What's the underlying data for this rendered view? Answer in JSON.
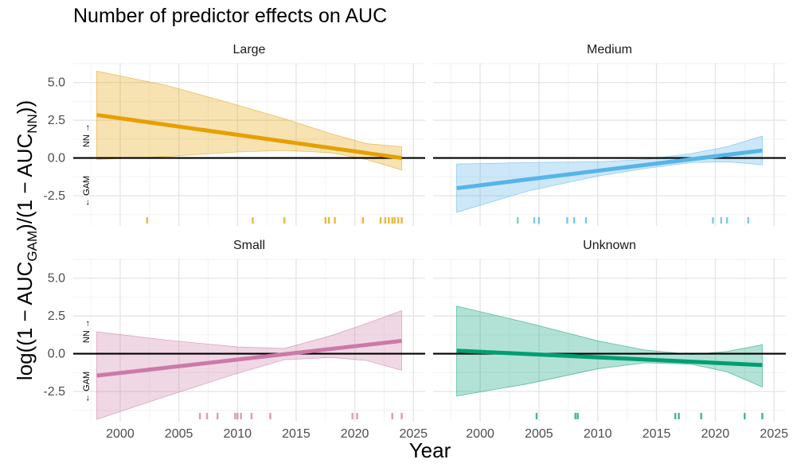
{
  "chart_data": {
    "type": "line",
    "title": "Number of predictor effects on AUC",
    "xlabel": "Year",
    "ylabel": "log((1 − AUC_GAM)/(1 − AUC_NN))",
    "ylabel_parts": {
      "pre": "log((1 − AUC",
      "sub1": "GAM",
      "mid": ")/(1 − AUC",
      "sub2": "NN",
      "post": "))"
    },
    "annotations": {
      "up": "NN →",
      "down": "← GAM"
    },
    "xlim": [
      1996,
      2026
    ],
    "ylim": [
      -4.5,
      6.3
    ],
    "x_ticks": [
      2000,
      2005,
      2010,
      2015,
      2020,
      2025
    ],
    "x_tick_labels": [
      "2000",
      "2005",
      "2010",
      "2015",
      "2020",
      "2025"
    ],
    "y_ticks": [
      -2.5,
      0,
      2.5,
      5
    ],
    "y_tick_labels": [
      "-2.5",
      "0.0",
      "2.5",
      "5.0"
    ],
    "reference_line": 0,
    "panels": [
      {
        "name": "Large",
        "color": "#E69F00",
        "line": {
          "x": [
            1998,
            2024
          ],
          "y": [
            2.85,
            0.0
          ]
        },
        "band": {
          "x": [
            1998,
            2004,
            2010,
            2014,
            2018,
            2021,
            2024
          ],
          "lower": [
            -0.1,
            0.1,
            0.4,
            0.5,
            0.35,
            -0.1,
            -0.8
          ],
          "upper": [
            5.75,
            4.8,
            3.5,
            2.6,
            1.6,
            0.95,
            0.75
          ]
        },
        "rug": [
          2002.3,
          2011.3,
          2014,
          2017.5,
          2017.8,
          2018.3,
          2020.7,
          2022.2,
          2022.6,
          2022.9,
          2023.2,
          2023.4,
          2023.7,
          2024
        ]
      },
      {
        "name": "Medium",
        "color": "#56B4E9",
        "line": {
          "x": [
            1998,
            2024
          ],
          "y": [
            -2.0,
            0.5
          ]
        },
        "band": {
          "x": [
            1998,
            2004,
            2010,
            2014,
            2018,
            2021,
            2024
          ],
          "lower": [
            -3.6,
            -2.2,
            -1.2,
            -0.7,
            -0.3,
            -0.25,
            -0.45
          ],
          "upper": [
            -0.4,
            -0.3,
            -0.25,
            -0.1,
            0.3,
            0.75,
            1.45
          ]
        },
        "rug": [
          2003.2,
          2004.6,
          2005,
          2007.4,
          2008,
          2009,
          2019.8,
          2020.5,
          2021,
          2022.8
        ]
      },
      {
        "name": "Small",
        "color": "#CC79A7",
        "line": {
          "x": [
            1998,
            2024
          ],
          "y": [
            -1.45,
            0.85
          ]
        },
        "band": {
          "x": [
            1998,
            2004,
            2010,
            2014,
            2018,
            2021,
            2024
          ],
          "lower": [
            -4.35,
            -2.8,
            -1.3,
            -0.4,
            -0.25,
            -0.45,
            -1.1
          ],
          "upper": [
            1.45,
            0.9,
            0.45,
            0.35,
            1.2,
            2.0,
            2.85
          ]
        },
        "rug": [
          2006.8,
          2007.4,
          2008.3,
          2009.8,
          2010,
          2010.3,
          2011.2,
          2012.8,
          2019.8,
          2020.2,
          2023.2,
          2024
        ]
      },
      {
        "name": "Unknown",
        "color": "#009E73",
        "line": {
          "x": [
            1998,
            2024
          ],
          "y": [
            0.2,
            -0.75
          ]
        },
        "band": {
          "x": [
            1998,
            2004,
            2010,
            2014,
            2018,
            2021,
            2024
          ],
          "lower": [
            -2.8,
            -2.0,
            -1.0,
            -0.6,
            -0.7,
            -1.2,
            -2.2
          ],
          "upper": [
            3.15,
            2.05,
            0.85,
            0.25,
            -0.05,
            0.15,
            0.6
          ]
        },
        "rug": [
          2004.8,
          2008.1,
          2008.3,
          2016.6,
          2016.9,
          2018.8,
          2022.5,
          2024
        ]
      }
    ]
  }
}
